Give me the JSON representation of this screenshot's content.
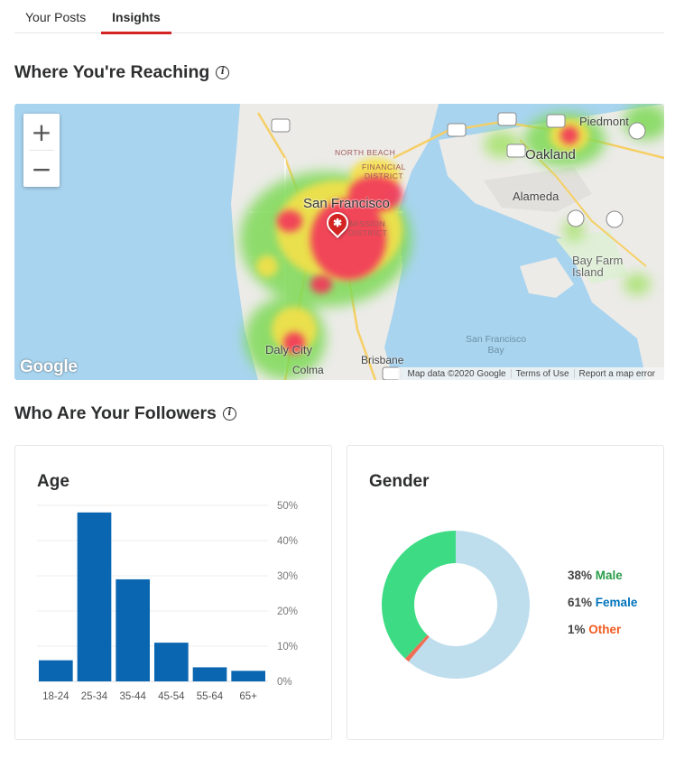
{
  "tabs": [
    {
      "label": "Your Posts",
      "active": false
    },
    {
      "label": "Insights",
      "active": true
    }
  ],
  "reach": {
    "title": "Where You're Reaching",
    "info_icon": "info-icon",
    "zoom_in": "+",
    "zoom_out": "−",
    "labels": {
      "san_francisco": "San Francisco",
      "oakland": "Oakland",
      "alameda": "Alameda",
      "piedmont": "Piedmont",
      "bay_farm": "Bay Farm\nIsland",
      "daly_city": "Daly City",
      "colma": "Colma",
      "brisbane": "Brisbane",
      "sf_bay": "San Francisco\nBay",
      "north_beach": "NORTH BEACH",
      "financial": "FINANCIAL\nDISTRICT",
      "mission": "MISSION\nDISTRICT"
    },
    "google_logo": "Google",
    "footer": {
      "map_data": "Map data ©2020 Google",
      "terms": "Terms of Use",
      "report": "Report a map error"
    }
  },
  "followers": {
    "title": "Who Are Your Followers",
    "info_icon": "info-icon"
  },
  "age_card": {
    "title": "Age"
  },
  "gender_card": {
    "title": "Gender",
    "male_pct": "38%",
    "male_label": "Male",
    "female_pct": "61%",
    "female_label": "Female",
    "other_pct": "1%",
    "other_label": "Other",
    "colors": {
      "male": "#3ddc84",
      "female": "#bfdeed",
      "other": "#f06d55"
    }
  },
  "chart_data": [
    {
      "type": "bar",
      "title": "Age",
      "categories": [
        "18-24",
        "25-34",
        "35-44",
        "45-54",
        "55-64",
        "65+"
      ],
      "values": [
        6,
        48,
        29,
        11,
        4,
        3
      ],
      "ylim": [
        0,
        50
      ],
      "yticks": [
        "0%",
        "10%",
        "20%",
        "30%",
        "40%",
        "50%"
      ],
      "color": "#0a66b0",
      "grid": true
    },
    {
      "type": "pie",
      "title": "Gender",
      "categories": [
        "Male",
        "Female",
        "Other"
      ],
      "values": [
        38,
        61,
        1
      ]
    }
  ]
}
